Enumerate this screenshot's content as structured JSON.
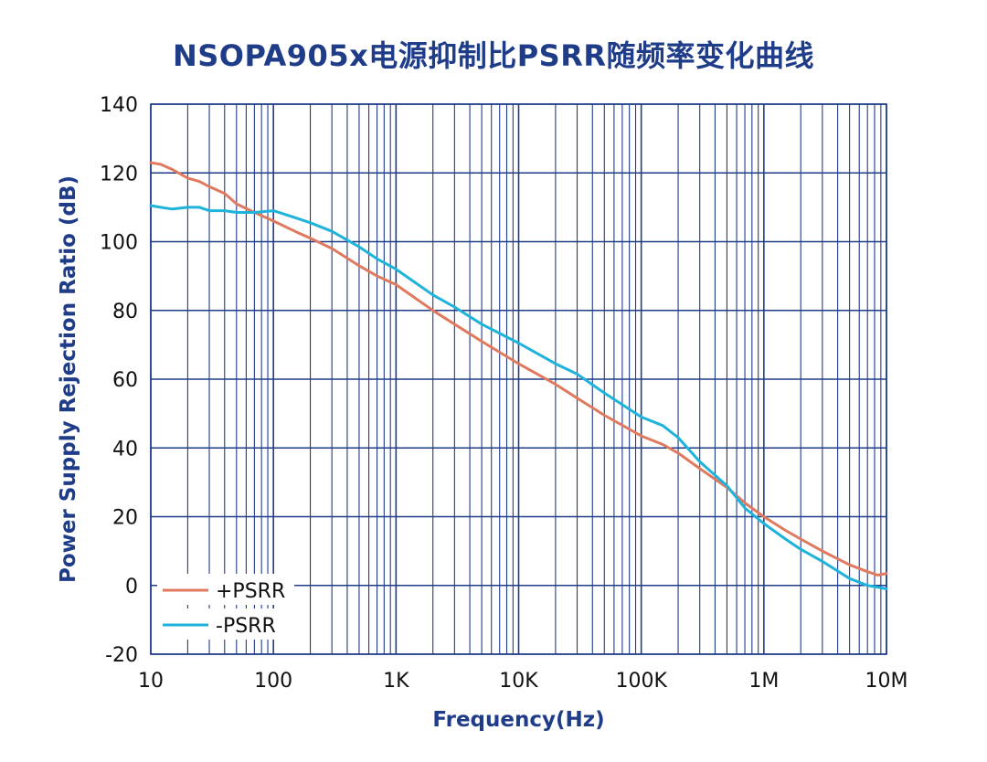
{
  "chart_data": {
    "type": "line",
    "title": "NSOPA905x电源抑制比PSRR随频率变化曲线",
    "xlabel": "Frequency(Hz)",
    "ylabel": "Power Supply Rejection Ratio (dB)",
    "x_scale": "log",
    "xlim": [
      10,
      10000000
    ],
    "ylim": [
      -20,
      140
    ],
    "x_ticks": [
      {
        "value": 10,
        "label": "10"
      },
      {
        "value": 100,
        "label": "100"
      },
      {
        "value": 1000,
        "label": "1K"
      },
      {
        "value": 10000,
        "label": "10K"
      },
      {
        "value": 100000,
        "label": "100K"
      },
      {
        "value": 1000000,
        "label": "1M"
      },
      {
        "value": 10000000,
        "label": "10M"
      }
    ],
    "y_ticks": [
      -20,
      0,
      20,
      40,
      60,
      80,
      100,
      120,
      140
    ],
    "grid": true,
    "legend_position": "bottom-left",
    "series": [
      {
        "name": "+PSRR",
        "color": "#e07a5f",
        "x": [
          10,
          12,
          15,
          20,
          25,
          30,
          40,
          50,
          70,
          100,
          150,
          200,
          300,
          500,
          700,
          1000,
          2000,
          3000,
          5000,
          10000,
          20000,
          30000,
          50000,
          100000,
          150000,
          200000,
          300000,
          500000,
          700000,
          1000000,
          1500000,
          2000000,
          3000000,
          5000000,
          7000000,
          8500000,
          10000000
        ],
        "y": [
          123,
          122.5,
          121,
          118.5,
          117.5,
          116,
          114,
          111,
          108.5,
          106,
          103,
          101,
          98,
          93,
          90,
          87.5,
          80,
          76,
          71,
          64.5,
          58.5,
          54.5,
          49.5,
          43.5,
          41,
          38.5,
          34,
          28.5,
          24,
          20,
          16,
          13.5,
          10,
          6,
          4,
          3,
          3.5
        ]
      },
      {
        "name": "-PSRR",
        "color": "#1fb3dc",
        "x": [
          10,
          12,
          15,
          20,
          25,
          30,
          40,
          50,
          70,
          100,
          150,
          200,
          300,
          500,
          700,
          1000,
          2000,
          3000,
          5000,
          10000,
          20000,
          30000,
          50000,
          100000,
          150000,
          200000,
          300000,
          500000,
          700000,
          1000000,
          1500000,
          2000000,
          3000000,
          5000000,
          7000000,
          8500000,
          10000000
        ],
        "y": [
          110.5,
          110,
          109.5,
          110,
          110,
          109,
          109,
          108.5,
          108.5,
          109,
          107,
          105.5,
          103,
          98.5,
          95,
          92,
          84.5,
          81,
          76,
          70.5,
          64.5,
          61.5,
          56,
          49,
          46.5,
          43,
          36,
          29,
          22.5,
          18,
          13.5,
          10.5,
          7,
          2,
          0,
          -0.5,
          -1
        ]
      }
    ]
  }
}
